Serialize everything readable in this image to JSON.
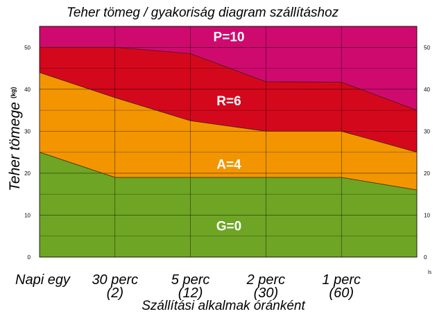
{
  "chart_data": {
    "type": "area",
    "title": "Teher tömeg  / gyakoriság diagram szállításhoz",
    "ylabel": "Teher tömege",
    "ylabel_unit": "(kg)",
    "xlabel": "Szállítási alkalmak óránként",
    "corner_label": "ls",
    "ylim": [
      0,
      55
    ],
    "yticks": [
      "0",
      "10",
      "20",
      "30",
      "40",
      "50"
    ],
    "grid": true,
    "categories": [
      {
        "line1": "Napi egy",
        "line2": ""
      },
      {
        "line1": "30 perc",
        "line2": "(2)"
      },
      {
        "line1": "5 perc",
        "line2": "(12)"
      },
      {
        "line1": "2 perc",
        "line2": "(30)"
      },
      {
        "line1": "1 perc",
        "line2": "(60)"
      },
      {
        "line1": "",
        "line2": ""
      }
    ],
    "boundaries": [
      [
        25,
        19,
        19,
        19,
        19,
        16
      ],
      [
        44,
        38,
        32.5,
        30,
        30,
        25
      ],
      [
        50,
        50,
        48.5,
        41.8,
        41.7,
        35
      ]
    ],
    "zones": [
      {
        "label": "G=0",
        "color": "#6ea524",
        "label_y": 7.5
      },
      {
        "label": "A=4",
        "color": "#f39500",
        "label_y": 22.2
      },
      {
        "label": "R=6",
        "color": "#d4081d",
        "label_y": 37.3
      },
      {
        "label": "P=10",
        "color": "#cf0a6e",
        "label_y": 52.6
      }
    ]
  }
}
